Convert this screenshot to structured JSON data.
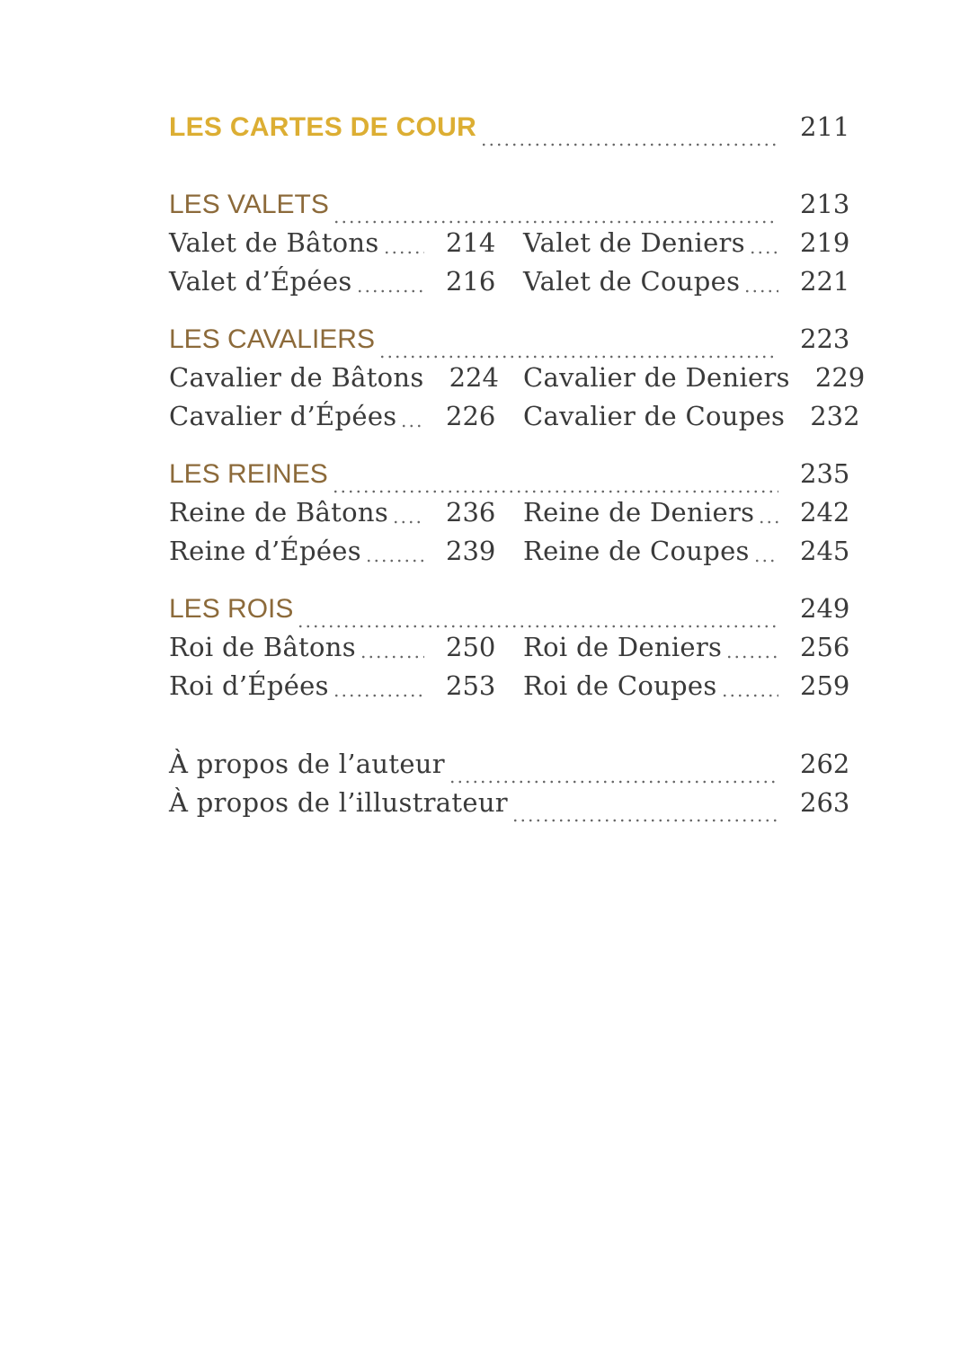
{
  "main_title": {
    "label": "LES CARTES DE COUR",
    "page": "211"
  },
  "sections": [
    {
      "heading": "LES VALETS",
      "page": "213",
      "entries": [
        [
          {
            "label": "Valet de Bâtons",
            "page": "214"
          },
          {
            "label": "Valet de Deniers",
            "page": "219"
          }
        ],
        [
          {
            "label": "Valet d’Épées",
            "page": "216"
          },
          {
            "label": "Valet de Coupes",
            "page": "221"
          }
        ]
      ]
    },
    {
      "heading": "LES CAVALIERS",
      "page": "223",
      "entries": [
        [
          {
            "label": "Cavalier de Bâtons",
            "page": "224"
          },
          {
            "label": "Cavalier de Deniers",
            "page": "229"
          }
        ],
        [
          {
            "label": "Cavalier d’Épées",
            "page": "226"
          },
          {
            "label": "Cavalier de Coupes",
            "page": "232"
          }
        ]
      ]
    },
    {
      "heading": "LES REINES",
      "page": "235",
      "entries": [
        [
          {
            "label": "Reine de Bâtons",
            "page": "236"
          },
          {
            "label": "Reine de Deniers",
            "page": "242"
          }
        ],
        [
          {
            "label": "Reine d’Épées",
            "page": "239"
          },
          {
            "label": "Reine de Coupes",
            "page": "245"
          }
        ]
      ]
    },
    {
      "heading": "LES ROIS",
      "page": "249",
      "entries": [
        [
          {
            "label": "Roi de Bâtons",
            "page": "250"
          },
          {
            "label": "Roi de Deniers",
            "page": "256"
          }
        ],
        [
          {
            "label": "Roi d’Épées",
            "page": "253"
          },
          {
            "label": "Roi de Coupes",
            "page": "259"
          }
        ]
      ]
    }
  ],
  "back_matter": [
    {
      "label": "À propos de l’auteur",
      "page": "262"
    },
    {
      "label": "À propos de l’illustrateur",
      "page": "263"
    }
  ],
  "colors": {
    "title": "#dcae33",
    "heading": "#8c6a3a",
    "text": "#3a3a3a"
  }
}
